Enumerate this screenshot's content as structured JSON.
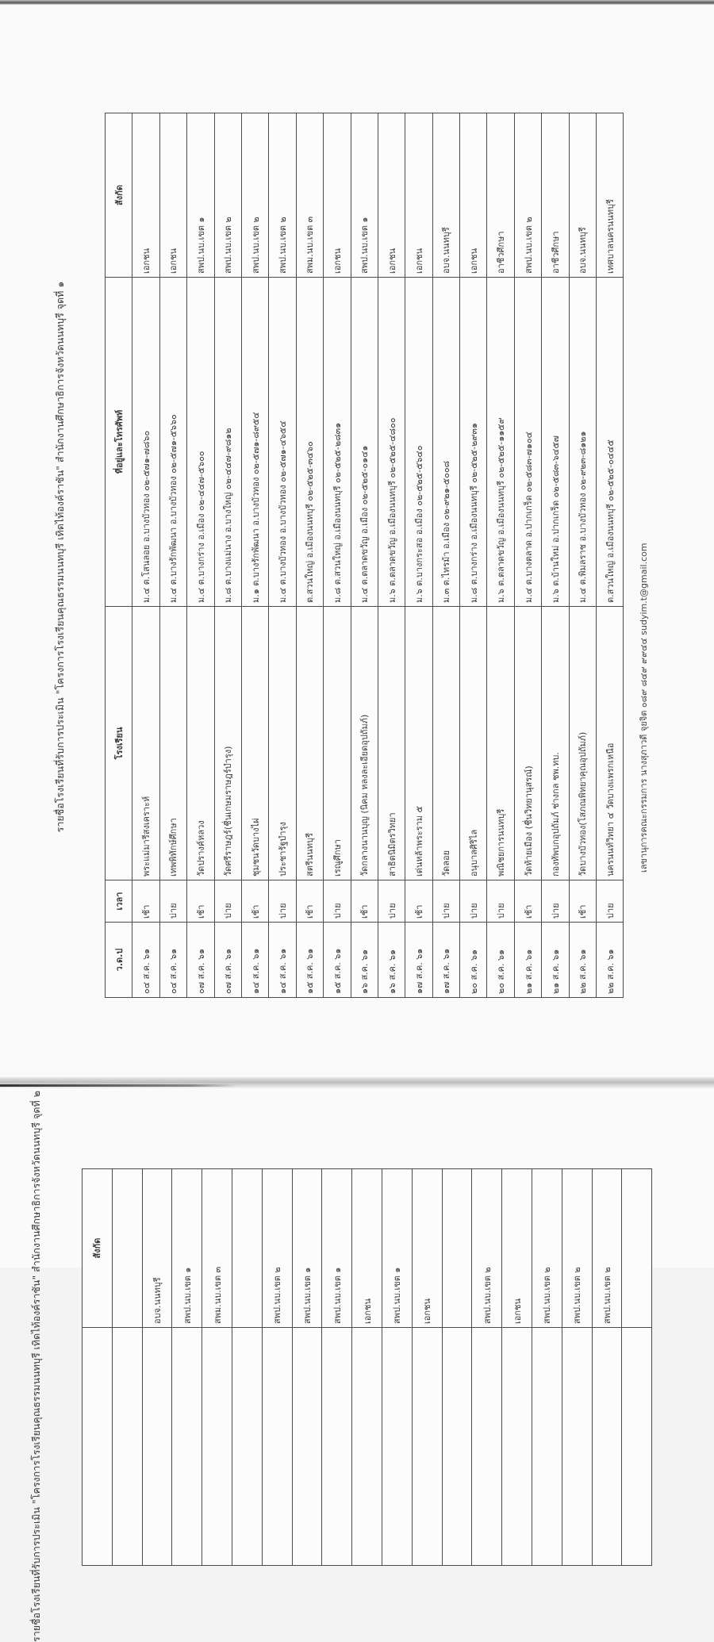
{
  "page1": {
    "title": "รายชื่อโรงเรียนที่รับการประเมิน \"โครงการโรงเรียนคุณธรรมนนทบุรี เทิดไท้องค์ราชัน\" สำนักงานศึกษาธิการจังหวัดนนทบุรี จุดที่ ๑",
    "headers": [
      "ว.ด.ป",
      "เวลา",
      "โรงเรียน",
      "ที่อยู่และโทรศัพท์",
      "สังกัด"
    ],
    "rows": [
      [
        "๐๔ ส.ค. ๖๑",
        "เช้า",
        "พระแม่มารีสงเคราะห์",
        "ม.๔ ต.โสนลอย อ.บางบัวทอง ๐๒-๕๗๑-๗๘๖๐",
        "เอกชน"
      ],
      [
        "๐๔ ส.ค. ๖๑",
        "บ่าย",
        "เทพพิทักษ์ศึกษา",
        "ม.๔ ต.บางรักพัฒนา อ.บางบัวทอง ๐๒-๕๗๑-๕๖๖๐",
        "เอกชน"
      ],
      [
        "๐๗ ส.ค. ๖๑",
        "เช้า",
        "วัดปรางค์หลวง",
        "ม.๔ ต.บางกร่าง อ.เมือง ๐๒-๔๔๗-๕๖๐๐",
        "สพป.นบ.เขต ๑"
      ],
      [
        "๐๗ ส.ค. ๖๑",
        "บ่าย",
        "วัดศรีราษฎร์(ชื่นเกษมราษฎร์บำรุง)",
        "ม.๘ ต.บางแม่นาง อ.บางใหญ่ ๐๒-๔๔๗-๙๘๑๒",
        "สพป.นบ.เขต ๒"
      ],
      [
        "๑๔ ส.ค. ๖๑",
        "เช้า",
        "ชุมชนวัดบางไผ่",
        "ม.๑ ต.บางรักพัฒนา อ.บางบัวทอง ๐๒-๕๗๑-๘๙๕๔",
        "สพป.นบ.เขต ๒"
      ],
      [
        "๑๔ ส.ค. ๖๑",
        "บ่าย",
        "ประชารัฐบำรุง",
        "ม.๔ ต.บางบัวทอง อ.บางบัวทอง ๐๒-๕๗๑-๔๖๕๔",
        "สพป.นบ.เขต ๒"
      ],
      [
        "๑๕ ส.ค. ๖๑",
        "เช้า",
        "สตรีนนทบุรี",
        "ต.สวนใหญ่ อ.เมืองนนทบุรี ๐๒-๕๒๕-๓๔๖๐",
        "สพม.นบ.เขต ๓"
      ],
      [
        "๑๕ ส.ค. ๖๑",
        "บ่าย",
        "เรณูศึกษา",
        "ม.๘ ต.สวนใหญ่ อ.เมืองนนทบุรี ๐๒-๕๒๕-๒๘๓๑",
        "เอกชน"
      ],
      [
        "๑๖ ส.ค. ๖๑",
        "เช้า",
        "วัดกลางนานบุญ (นิคม หลงละเอียดอุปถัมภ์)",
        "ม.๔ ต.ตลาดขวัญ อ.เมือง ๐๒-๕๒๕-๐๑๔๑",
        "สพป.นบ.เขต ๑"
      ],
      [
        "๑๖ ส.ค. ๖๑",
        "บ่าย",
        "สาธิตนิมิตรวิทยา",
        "ม.๖ ต.ตลาดขวัญ อ.เมืองนนทบุรี ๐๒-๕๒๕-๔๘๐๐",
        "เอกชน"
      ],
      [
        "๑๗ ส.ค. ๖๑",
        "เช้า",
        "เด่นหล้าพระราม ๕",
        "ม.๖ ต.บางกระสอ อ.เมือง ๐๒-๕๒๕-๕๖๔๐",
        "เอกชน"
      ],
      [
        "๑๗ ส.ค. ๖๑",
        "บ่าย",
        "วัดลอย",
        "ม.๓ ต.ไทรม้า อ.เมือง ๐๒-๙๒๑-๕๐๐๘",
        "อบจ.นนทบุรี"
      ],
      [
        "๒๐ ส.ค. ๖๑",
        "บ่าย",
        "อนุบาลศิริไล",
        "ม.๘ ต.บางกร่าง อ.เมืองนนทบุรี ๐๒-๕๒๕-๒๙๓๑",
        "เอกชน"
      ],
      [
        "๒๐ ส.ค. ๖๑",
        "บ่าย",
        "พณิชยการนนทบุรี",
        "ม.๖ ต.ตลาดขวัญ อ.เมืองนนทบุรี ๐๒-๕๒๕-๑๑๕๙",
        "อาชีวศึกษา"
      ],
      [
        "๒๑ ส.ค. ๖๑",
        "เช้า",
        "วัดท้ายเมือง (ชื่นวิทยานุสรณ์)",
        "ม.๔ ต.บางตลาด อ.ปากเกร็ด ๐๒-๕๘๓-๗๑๐๔",
        "สพป.นบ.เขต ๒"
      ],
      [
        "๒๑ ส.ค. ๖๑",
        "บ่าย",
        "กองทัพบกอุปถัมภ์ ช่างกล ชพ.ทบ.",
        "ม.๖ ต.บ้านใหม่ อ.ปากเกร็ด ๐๒-๕๘๓-๖๔๕๗",
        "อาชีวศึกษา"
      ],
      [
        "๒๒ ส.ค. ๖๑",
        "เช้า",
        "วัดบางบัวทอง(โสภณพิทยาคุณอุปถัมภ์)",
        "ม.๔ ต.พิมลราช อ.บางบัวทอง ๐๒-๙๒๓-๘๑๒๑",
        "อบจ.นนทบุรี"
      ],
      [
        "๒๒ ส.ค. ๖๑",
        "บ่าย",
        "นครนนท์วิทยา ๔ วัดบางแพรกเหนือ",
        "ต.สวนใหญ่ อ.เมืองนนทบุรี ๐๒-๕๒๕-๐๔๔๕",
        "เทศบาลนครนนทบุรี"
      ]
    ],
    "footer": "เลขานุการคณะกรรมการ นางสุภาวดี จุยจิต ๐๘๙ ๘๔๙ ๙๙๔๔ sudyim.t@gmail.com"
  },
  "page2": {
    "title": "รายชื่อโรงเรียนที่รับการประเมิน \"โครงการโรงเรียนคุณธรรมนนทบุรี เทิดไท้องค์ราชัน\" สำนักงานศึกษาธิการจังหวัดนนทบุรี จุดที่ ๒",
    "header": "สังกัด",
    "rows": [
      "",
      "อบจ.นนทบุรี",
      "สพป.นบ.เขต ๑",
      "สพม.นบ.เขต ๓",
      "",
      "สพป.นบ.เขต ๒",
      "สพป.นบ.เขต ๑",
      "สพป.นบ.เขต ๑",
      "เอกชน",
      "สพป.นบ.เขต ๑",
      "เอกชน",
      "",
      "สพป.นบ.เขต ๒",
      "เอกชน",
      "สพป.นบ.เขต ๒",
      "สพป.นบ.เขต ๒",
      "สพป.นบ.เขต ๒",
      ""
    ]
  }
}
